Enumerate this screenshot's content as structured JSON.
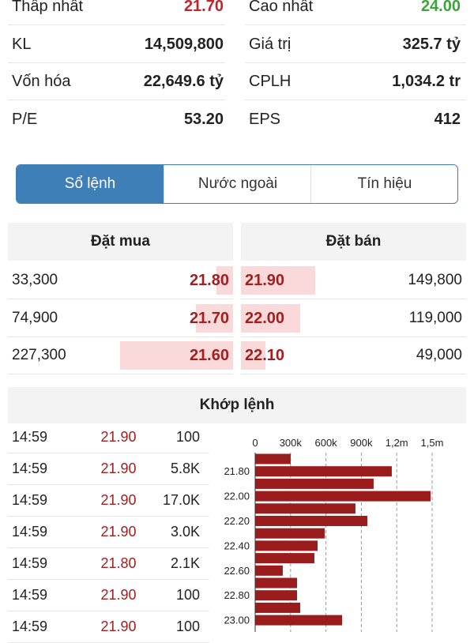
{
  "stats": [
    {
      "label": "Thấp nhất",
      "value": "21.70",
      "color": "#c0262d"
    },
    {
      "label": "Cao nhất",
      "value": "24.00",
      "color": "#3aa63a"
    },
    {
      "label": "KL",
      "value": "14,509,800"
    },
    {
      "label": "Giá trị",
      "value": "325.7 tỷ"
    },
    {
      "label": "Vốn hóa",
      "value": "22,649.6 tỷ"
    },
    {
      "label": "CPLH",
      "value": "1,034.2 tr"
    },
    {
      "label": "P/E",
      "value": "53.20"
    },
    {
      "label": "EPS",
      "value": "412"
    }
  ],
  "tabs": [
    "Sổ lệnh",
    "Nước ngoài",
    "Tín hiệu"
  ],
  "active_tab": 0,
  "order_book": {
    "buy_header": "Đặt mua",
    "sell_header": "Đặt bán",
    "buy": {
      "prices": [
        "21.80",
        "21.70",
        "21.60"
      ],
      "volumes": [
        33300,
        74900,
        227300
      ],
      "volume_labels": [
        "33,300",
        "74,900",
        "227,300"
      ]
    },
    "sell": {
      "prices": [
        "21.90",
        "22.00",
        "22.10"
      ],
      "volumes": [
        149800,
        119000,
        49000
      ],
      "volume_labels": [
        "149,800",
        "119,000",
        "49,000"
      ]
    }
  },
  "matches": {
    "header": "Khớp lệnh",
    "rows": [
      [
        "14:59",
        "21.90",
        "100"
      ],
      [
        "14:59",
        "21.90",
        "5.8K"
      ],
      [
        "14:59",
        "21.90",
        "17.0K"
      ],
      [
        "14:59",
        "21.90",
        "3.0K"
      ],
      [
        "14:59",
        "21.80",
        "2.1K"
      ],
      [
        "14:59",
        "21.90",
        "100"
      ],
      [
        "14:59",
        "21.90",
        "100"
      ]
    ]
  },
  "chart_data": {
    "type": "bar",
    "orientation": "horizontal",
    "categories": [
      null,
      "21.80",
      null,
      "22.00",
      null,
      "22.20",
      null,
      "22.40",
      null,
      "22.60",
      null,
      "22.80",
      null,
      "23.00"
    ],
    "values": [
      301000,
      1158000,
      1004000,
      1487000,
      850000,
      951000,
      589000,
      529000,
      502000,
      234000,
      355000,
      355000,
      382000,
      737000
    ],
    "color": "#9b1c1c",
    "xlim": [
      0,
      1500000
    ],
    "xticks": [
      0,
      {
        "value": 300000,
        "label": "300k"
      },
      {
        "value": 600000,
        "label": "600k"
      },
      {
        "value": 900000,
        "label": "900k"
      },
      {
        "value": 1200000,
        "label": "1,2m"
      },
      {
        "value": 1500000,
        "label": "1,5m"
      }
    ],
    "grid": true
  }
}
